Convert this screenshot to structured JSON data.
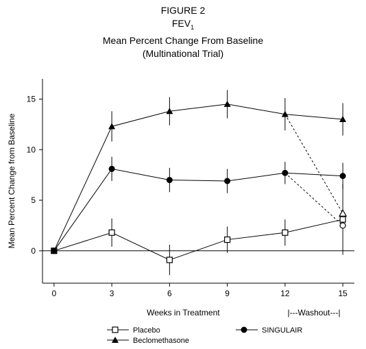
{
  "figure": {
    "label": "FIGURE 2",
    "line2_main": "FEV",
    "line2_sub": "1",
    "line3": "Mean Percent Change From Baseline",
    "line4": "(Multinational Trial)"
  },
  "chart_data": {
    "type": "line",
    "x": [
      0,
      3,
      6,
      9,
      12,
      15
    ],
    "xticks": [
      "0",
      "3",
      "6",
      "9",
      "12",
      "15"
    ],
    "yticks": [
      "0",
      "5",
      "10",
      "15"
    ],
    "xlim": [
      -0.6,
      15.6
    ],
    "ylim": [
      -3.2,
      17
    ],
    "xlabel": "Weeks in Treatment",
    "ylabel": "Mean Percent Change from Baseline",
    "washout_label": "|---Washout---|",
    "grid": false,
    "reference_line_y": 0,
    "series": [
      {
        "name": "Placebo",
        "marker": "open-square",
        "values": [
          0,
          1.8,
          -0.9,
          1.1,
          1.8,
          3.1
        ],
        "error": [
          0,
          1.4,
          1.5,
          1.3,
          1.3,
          3.5
        ]
      },
      {
        "name": "SINGULAIR",
        "marker": "filled-circle",
        "values": [
          0,
          8.1,
          7.0,
          6.9,
          7.7,
          7.4
        ],
        "error": [
          0,
          1.2,
          1.2,
          1.2,
          1.1,
          1.3
        ],
        "washout_value": 2.5
      },
      {
        "name": "Beclomethasone",
        "marker": "filled-triangle",
        "values": [
          0,
          12.3,
          13.8,
          14.5,
          13.5,
          13.0
        ],
        "error": [
          0,
          1.5,
          1.4,
          1.4,
          1.6,
          1.6
        ],
        "washout_value": 3.7
      }
    ],
    "legend_position": "bottom"
  }
}
